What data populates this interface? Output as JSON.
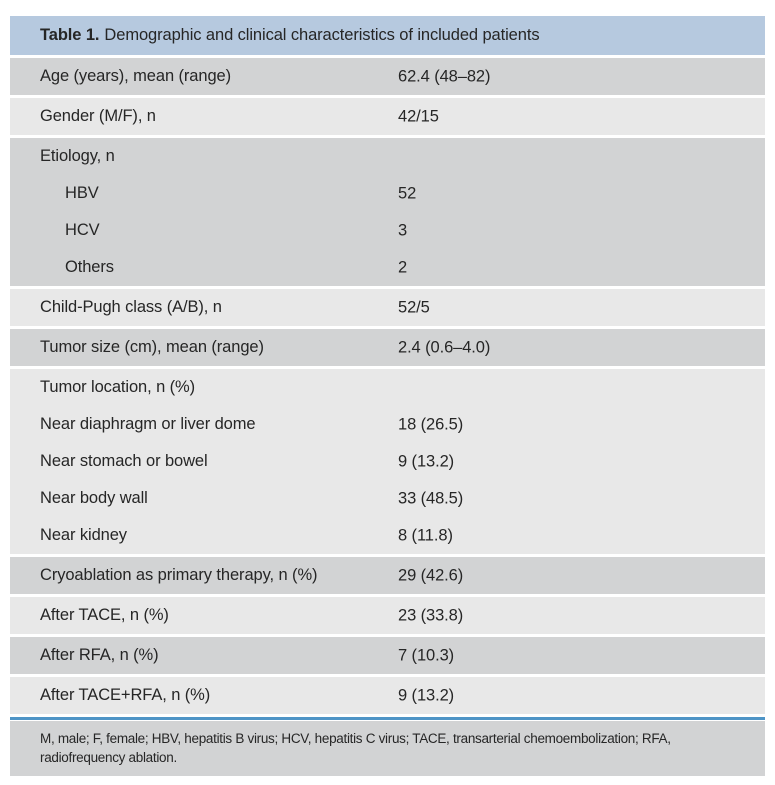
{
  "colors": {
    "page_bg": "#ffffff",
    "title_bar_bg": "#b6c9df",
    "row_dark_bg": "#d2d3d4",
    "row_light_bg": "#e8e8e8",
    "rule_blue": "#4e94c6",
    "footnote_bg": "#d2d3d4",
    "text": "#262626"
  },
  "table": {
    "label_bold": "Table 1.",
    "title": "Demographic and clinical characteristics of included patients",
    "rows": [
      {
        "shade": "dark",
        "lines": [
          {
            "label": "Age (years), mean (range)",
            "value": "62.4 (48–82)"
          }
        ]
      },
      {
        "shade": "light",
        "lines": [
          {
            "label": "Gender (M/F), n",
            "value": "42/15"
          }
        ]
      },
      {
        "shade": "dark",
        "lines": [
          {
            "label": "Etiology, n",
            "value": ""
          },
          {
            "label": "HBV",
            "value": "52",
            "indent": true
          },
          {
            "label": "HCV",
            "value": "3",
            "indent": true
          },
          {
            "label": "Others",
            "value": "2",
            "indent": true
          }
        ]
      },
      {
        "shade": "light",
        "lines": [
          {
            "label": "Child-Pugh class (A/B), n",
            "value": "52/5"
          }
        ]
      },
      {
        "shade": "dark",
        "lines": [
          {
            "label": "Tumor size (cm), mean (range)",
            "value": "2.4 (0.6–4.0)"
          }
        ]
      },
      {
        "shade": "light",
        "lines": [
          {
            "label": "Tumor location, n (%)",
            "value": ""
          },
          {
            "label": "Near diaphragm or liver dome",
            "value": "18 (26.5)"
          },
          {
            "label": "Near stomach or bowel",
            "value": "9 (13.2)"
          },
          {
            "label": "Near body wall",
            "value": "33 (48.5)"
          },
          {
            "label": "Near kidney",
            "value": "8 (11.8)"
          }
        ]
      },
      {
        "shade": "dark",
        "lines": [
          {
            "label": "Cryoablation as primary therapy, n (%)",
            "value": "29 (42.6)"
          }
        ]
      },
      {
        "shade": "light",
        "lines": [
          {
            "label": "After TACE, n (%)",
            "value": "23 (33.8)"
          }
        ]
      },
      {
        "shade": "dark",
        "lines": [
          {
            "label": "After RFA, n (%)",
            "value": "7 (10.3)"
          }
        ]
      },
      {
        "shade": "light",
        "lines": [
          {
            "label": "After TACE+RFA, n (%)",
            "value": "9 (13.2)"
          }
        ]
      }
    ],
    "footnote_lines": [
      "M, male; F, female; HBV, hepatitis B virus; HCV, hepatitis C virus; TACE, transarterial chemoembolization; RFA,",
      "radiofrequency ablation."
    ]
  }
}
